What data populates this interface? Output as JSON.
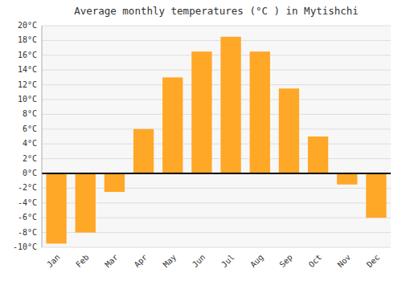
{
  "chart_data": {
    "type": "bar",
    "title": "Average monthly temperatures (°C ) in Mytishchi",
    "categories": [
      "Jan",
      "Feb",
      "Mar",
      "Apr",
      "May",
      "Jun",
      "Jul",
      "Aug",
      "Sep",
      "Oct",
      "Nov",
      "Dec"
    ],
    "values": [
      -9.5,
      -8.0,
      -2.5,
      6.0,
      13.0,
      16.5,
      18.5,
      16.5,
      11.5,
      5.0,
      -1.5,
      -6.0
    ],
    "color": "#FFA726",
    "ylim": [
      -10,
      20
    ],
    "yticks": [
      {
        "value": -10,
        "label": "-10°C"
      },
      {
        "value": -8,
        "label": "-8°C"
      },
      {
        "value": -6,
        "label": "-6°C"
      },
      {
        "value": -4,
        "label": "-4°C"
      },
      {
        "value": -2,
        "label": "-2°C"
      },
      {
        "value": 0,
        "label": "0°C"
      },
      {
        "value": 2,
        "label": "2°C"
      },
      {
        "value": 4,
        "label": "4°C"
      },
      {
        "value": 6,
        "label": "6°C"
      },
      {
        "value": 8,
        "label": "8°C"
      },
      {
        "value": 10,
        "label": "10°C"
      },
      {
        "value": 12,
        "label": "12°C"
      },
      {
        "value": 14,
        "label": "14°C"
      },
      {
        "value": 16,
        "label": "16°C"
      },
      {
        "value": 18,
        "label": "18°C"
      },
      {
        "value": 20,
        "label": "20°C"
      }
    ],
    "grid": true
  }
}
